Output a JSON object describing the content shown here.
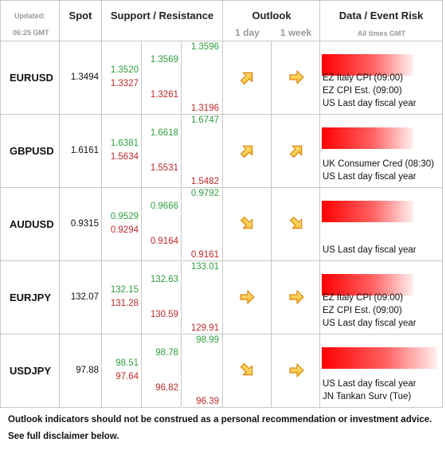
{
  "header": {
    "updated_label": "Updated:",
    "updated_time": "06:25 GMT",
    "spot": "Spot",
    "support_resistance": "Support / Resistance",
    "outlook": "Outlook",
    "outlook_1day": "1 day",
    "outlook_1week": "1 week",
    "event_risk": "Data / Event Risk",
    "event_note": "All times GMT"
  },
  "rows": [
    {
      "pair": "EURUSD",
      "spot": "1.3494",
      "resistance": [
        "1.3520",
        "1.3569",
        "1.3596"
      ],
      "support": [
        "1.3327",
        "1.3261",
        "1.3196"
      ],
      "events": [
        "EZ Italy CPI (09:00)",
        "EZ CPI Est. (09:00)",
        "US Last day fiscal year"
      ]
    },
    {
      "pair": "GBPUSD",
      "spot": "1.6161",
      "resistance": [
        "1.6381",
        "1.6618",
        "1.6747"
      ],
      "support": [
        "1.5634",
        "1.5531",
        "1.5482"
      ],
      "events": [
        "UK Consumer Cred (08:30)",
        "US Last day fiscal year"
      ]
    },
    {
      "pair": "AUDUSD",
      "spot": "0.9315",
      "resistance": [
        "0.9529",
        "0.9666",
        "0.9792"
      ],
      "support": [
        "0.9294",
        "0.9164",
        "0.9161"
      ],
      "events": [
        "US Last day fiscal year"
      ]
    },
    {
      "pair": "EURJPY",
      "spot": "132.07",
      "resistance": [
        "132.15",
        "132.63",
        "133.01"
      ],
      "support": [
        "131.28",
        "130.59",
        "129.91"
      ],
      "events": [
        "EZ Italy CPI (09:00)",
        "EZ CPI Est. (09:00)",
        "US Last day fiscal year"
      ]
    },
    {
      "pair": "USDJPY",
      "spot": "97.88",
      "resistance": [
        "98.51",
        "98.78",
        "98.99"
      ],
      "support": [
        "97.64",
        "96.82",
        "96.39"
      ],
      "events": [
        "US Last day fiscal year",
        "JN Tankan Surv (Tue)"
      ]
    }
  ],
  "footer": [
    "Outlook indicators should not be construed as a personal recommendation or investment advice.",
    "See full disclaimer below."
  ]
}
